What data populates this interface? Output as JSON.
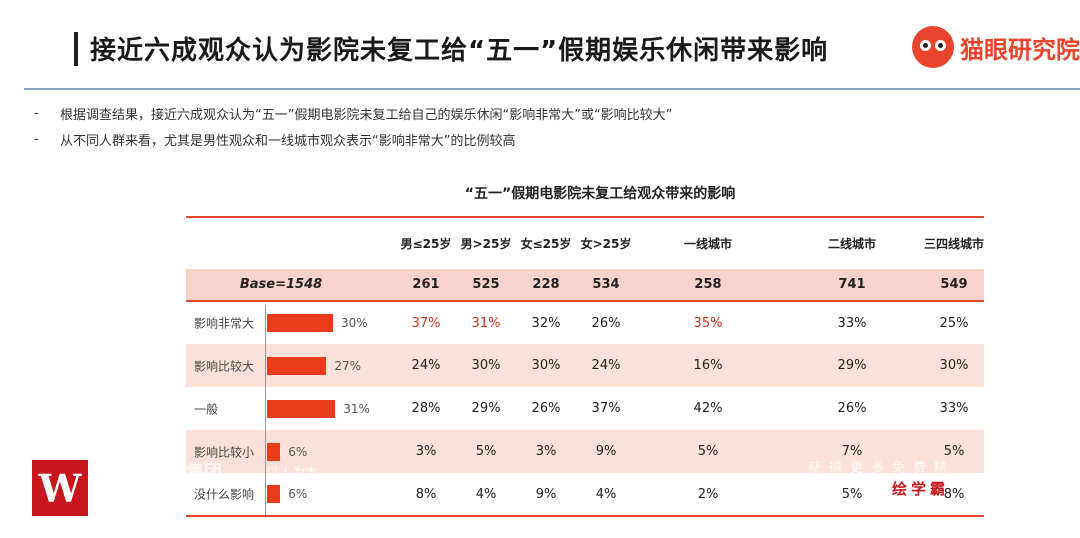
{
  "header": {
    "title": "接近六成观众认为影院未复工给“五一”假期娱乐休闲带来影响",
    "brand": "猫眼研究院"
  },
  "bullets": [
    "根据调查结果，接近六成观众认为“五一”假期电影院未复工给自己的娱乐休闲“影响非常大”或“影响比较大”",
    "从不同人群来看，尤其是男性观众和一线城市观众表示“影响非常大”的比例较高"
  ],
  "chart_data": {
    "type": "table",
    "title": "“五一”假期电影院未复工给观众带来的影响",
    "columns": [
      "男≤25岁",
      "男>25岁",
      "女≤25岁",
      "女>25岁",
      "一线城市",
      "二线城市",
      "三四线城市"
    ],
    "base_label": "Base=1548",
    "base_values": [
      "261",
      "525",
      "228",
      "534",
      "258",
      "741",
      "549"
    ],
    "rows": [
      {
        "label": "影响非常大",
        "overall": 30,
        "overall_text": "30%",
        "values": [
          "37%",
          "31%",
          "32%",
          "26%",
          "35%",
          "33%",
          "25%"
        ]
      },
      {
        "label": "影响比较大",
        "overall": 27,
        "overall_text": "27%",
        "values": [
          "24%",
          "30%",
          "30%",
          "24%",
          "16%",
          "29%",
          "30%"
        ]
      },
      {
        "label": "一般",
        "overall": 31,
        "overall_text": "31%",
        "values": [
          "28%",
          "29%",
          "26%",
          "37%",
          "42%",
          "26%",
          "33%"
        ]
      },
      {
        "label": "影响比较小",
        "overall": 6,
        "overall_text": "6%",
        "values": [
          "3%",
          "5%",
          "3%",
          "9%",
          "5%",
          "7%",
          "5%"
        ]
      },
      {
        "label": "没什么影响",
        "overall": 6,
        "overall_text": "6%",
        "values": [
          "8%",
          "4%",
          "9%",
          "4%",
          "2%",
          "5%",
          "8%"
        ]
      }
    ],
    "highlight_color": "#d0321c",
    "bar_color": "#ea3b1a"
  },
  "watermarks": {
    "logo_letter": "W",
    "group": "集团",
    "slogan": "以人为本",
    "promo": "获得更多免费精",
    "promo_brand": "绘学霸"
  }
}
